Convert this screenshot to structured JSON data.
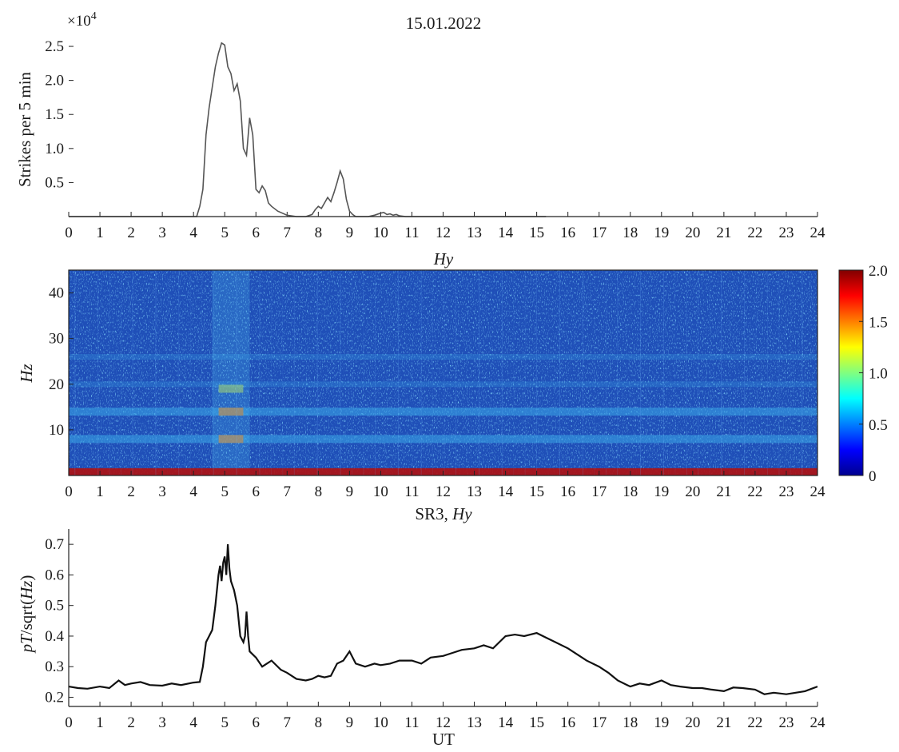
{
  "figure": {
    "date": "15.01.2022"
  },
  "chart_data": [
    {
      "type": "line",
      "title": "15.01.2022",
      "ylabel": "Strikes per 5 min",
      "y_multiplier": "×10",
      "y_multiplier_exp": "4",
      "xlim": [
        0,
        24
      ],
      "ylim": [
        0,
        2.7
      ],
      "xticks": [
        "0",
        "1",
        "2",
        "3",
        "4",
        "5",
        "6",
        "7",
        "8",
        "9",
        "10",
        "11",
        "12",
        "13",
        "14",
        "15",
        "16",
        "17",
        "18",
        "19",
        "20",
        "21",
        "22",
        "23",
        "24"
      ],
      "yticks": [
        0.5,
        1.0,
        1.5,
        2.0,
        2.5
      ],
      "ytick_labels": [
        "0.5",
        "1.0",
        "1.5",
        "2.0",
        "2.5"
      ],
      "color": "#555555",
      "series": [
        {
          "x": [
            0,
            4.1,
            4.2,
            4.3,
            4.4,
            4.5,
            4.6,
            4.7,
            4.8,
            4.9,
            5.0,
            5.1,
            5.2,
            5.3,
            5.4,
            5.5,
            5.6,
            5.7,
            5.8,
            5.9,
            6.0,
            6.1,
            6.2,
            6.3,
            6.4,
            6.5,
            6.7,
            7.0,
            7.3,
            7.6,
            7.8,
            7.9,
            8.0,
            8.1,
            8.2,
            8.3,
            8.4,
            8.5,
            8.6,
            8.7,
            8.8,
            8.9,
            9.0,
            9.1,
            9.2,
            9.4,
            9.6,
            9.8,
            10.0,
            10.1,
            10.2,
            10.3,
            10.4,
            10.5,
            10.6,
            10.8,
            11.0,
            13.0,
            15.3
          ],
          "y": [
            0,
            0,
            0.15,
            0.4,
            1.2,
            1.6,
            1.9,
            2.2,
            2.4,
            2.55,
            2.52,
            2.2,
            2.1,
            1.85,
            1.95,
            1.7,
            1.0,
            0.9,
            1.45,
            1.2,
            0.4,
            0.35,
            0.45,
            0.38,
            0.2,
            0.15,
            0.08,
            0.02,
            0.0,
            0.0,
            0.03,
            0.1,
            0.15,
            0.12,
            0.2,
            0.28,
            0.22,
            0.35,
            0.5,
            0.67,
            0.55,
            0.25,
            0.08,
            0.03,
            0.0,
            0.0,
            0.0,
            0.02,
            0.05,
            0.06,
            0.03,
            0.04,
            0.02,
            0.03,
            0.01,
            0.0,
            0.0,
            0.0,
            0.0
          ]
        }
      ]
    },
    {
      "type": "heatmap",
      "title": "Hy",
      "ylabel": "Hz",
      "xlim": [
        0,
        24
      ],
      "ylim": [
        0,
        45
      ],
      "xticks": [
        "0",
        "1",
        "2",
        "3",
        "4",
        "5",
        "6",
        "7",
        "8",
        "9",
        "10",
        "11",
        "12",
        "13",
        "14",
        "15",
        "16",
        "17",
        "18",
        "19",
        "20",
        "21",
        "22",
        "23",
        "24"
      ],
      "yticks": [
        10,
        20,
        30,
        40
      ],
      "ytick_labels": [
        "10",
        "20",
        "30",
        "40"
      ],
      "colorbar": {
        "min": 0,
        "max": 2.0,
        "ticks": [
          "0",
          "0.5",
          "1.0",
          "1.5",
          "2.0"
        ],
        "tick_values": [
          0,
          0.5,
          1.0,
          1.5,
          2.0
        ]
      },
      "bands_hz": [
        8,
        14,
        20,
        26
      ],
      "hot_interval_ut": [
        4.6,
        5.8
      ],
      "colormap": [
        "#00008f",
        "#0000ff",
        "#00ffff",
        "#ffff00",
        "#ff0000",
        "#800000"
      ]
    },
    {
      "type": "line",
      "title": "SR3, Hy",
      "xlabel": "UT",
      "ylabel": "pT/sqrt(Hz)",
      "xlim": [
        0,
        24
      ],
      "ylim": [
        0.17,
        0.75
      ],
      "xticks": [
        "0",
        "1",
        "2",
        "3",
        "4",
        "5",
        "6",
        "7",
        "8",
        "9",
        "10",
        "11",
        "12",
        "13",
        "14",
        "15",
        "16",
        "17",
        "18",
        "19",
        "20",
        "21",
        "22",
        "23",
        "24"
      ],
      "yticks": [
        0.2,
        0.3,
        0.4,
        0.5,
        0.6,
        0.7
      ],
      "ytick_labels": [
        "0.2",
        "0.3",
        "0.4",
        "0.5",
        "0.6",
        "0.7"
      ],
      "color": "#111111",
      "series": [
        {
          "x": [
            0,
            0.3,
            0.6,
            1.0,
            1.3,
            1.6,
            1.8,
            2.0,
            2.3,
            2.6,
            3.0,
            3.3,
            3.6,
            4.0,
            4.2,
            4.3,
            4.4,
            4.5,
            4.6,
            4.7,
            4.8,
            4.85,
            4.9,
            4.95,
            5.0,
            5.05,
            5.1,
            5.15,
            5.2,
            5.3,
            5.4,
            5.5,
            5.6,
            5.65,
            5.7,
            5.75,
            5.8,
            5.9,
            6.0,
            6.2,
            6.5,
            6.8,
            7.0,
            7.3,
            7.6,
            7.8,
            8.0,
            8.2,
            8.4,
            8.6,
            8.8,
            9.0,
            9.2,
            9.5,
            9.8,
            10.0,
            10.3,
            10.6,
            11.0,
            11.3,
            11.6,
            12.0,
            12.3,
            12.6,
            13.0,
            13.3,
            13.6,
            14.0,
            14.3,
            14.6,
            15.0,
            15.3,
            15.6,
            16.0,
            16.3,
            16.6,
            17.0,
            17.3,
            17.6,
            17.9,
            18.0,
            18.3,
            18.6,
            19.0,
            19.3,
            19.6,
            20.0,
            20.3,
            20.6,
            21.0,
            21.3,
            21.6,
            22.0,
            22.3,
            22.6,
            23.0,
            23.3,
            23.6,
            24.0
          ],
          "y": [
            0.235,
            0.23,
            0.228,
            0.235,
            0.23,
            0.255,
            0.24,
            0.245,
            0.25,
            0.24,
            0.238,
            0.245,
            0.24,
            0.248,
            0.25,
            0.3,
            0.38,
            0.4,
            0.42,
            0.5,
            0.6,
            0.63,
            0.58,
            0.64,
            0.66,
            0.6,
            0.7,
            0.62,
            0.58,
            0.55,
            0.5,
            0.4,
            0.38,
            0.4,
            0.48,
            0.4,
            0.35,
            0.34,
            0.33,
            0.3,
            0.32,
            0.29,
            0.28,
            0.26,
            0.255,
            0.26,
            0.27,
            0.265,
            0.27,
            0.31,
            0.32,
            0.35,
            0.31,
            0.3,
            0.31,
            0.305,
            0.31,
            0.32,
            0.32,
            0.31,
            0.33,
            0.335,
            0.345,
            0.355,
            0.36,
            0.37,
            0.36,
            0.4,
            0.405,
            0.4,
            0.41,
            0.395,
            0.38,
            0.36,
            0.34,
            0.32,
            0.3,
            0.28,
            0.255,
            0.24,
            0.235,
            0.245,
            0.24,
            0.255,
            0.24,
            0.235,
            0.23,
            0.23,
            0.225,
            0.22,
            0.232,
            0.23,
            0.225,
            0.21,
            0.215,
            0.21,
            0.215,
            0.22,
            0.235
          ]
        }
      ]
    }
  ]
}
